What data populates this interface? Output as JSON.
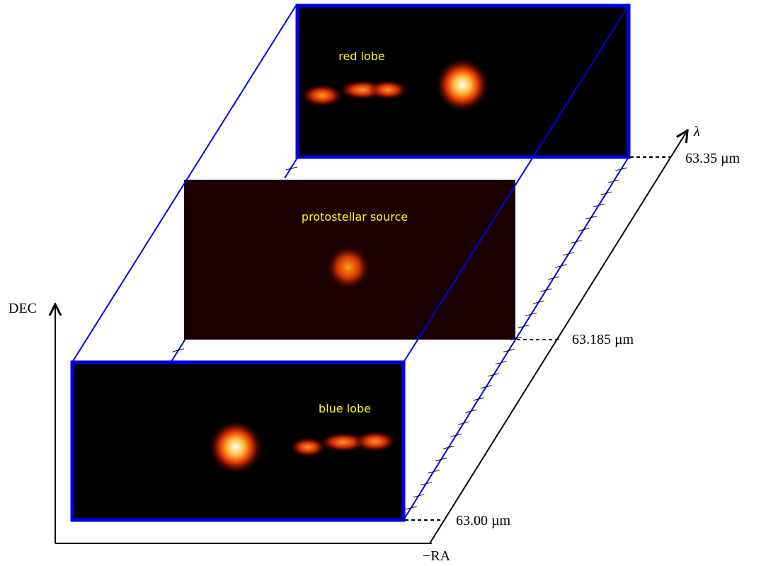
{
  "panels": [
    {
      "label": "red lobe",
      "wavelength": "63.35 µm"
    },
    {
      "label": "protostellar source",
      "wavelength": "63.185 µm"
    },
    {
      "label": "blue lobe",
      "wavelength": "63.00 µm"
    }
  ],
  "axes": {
    "y": "DEC",
    "x": "−RA",
    "z": "λ"
  }
}
